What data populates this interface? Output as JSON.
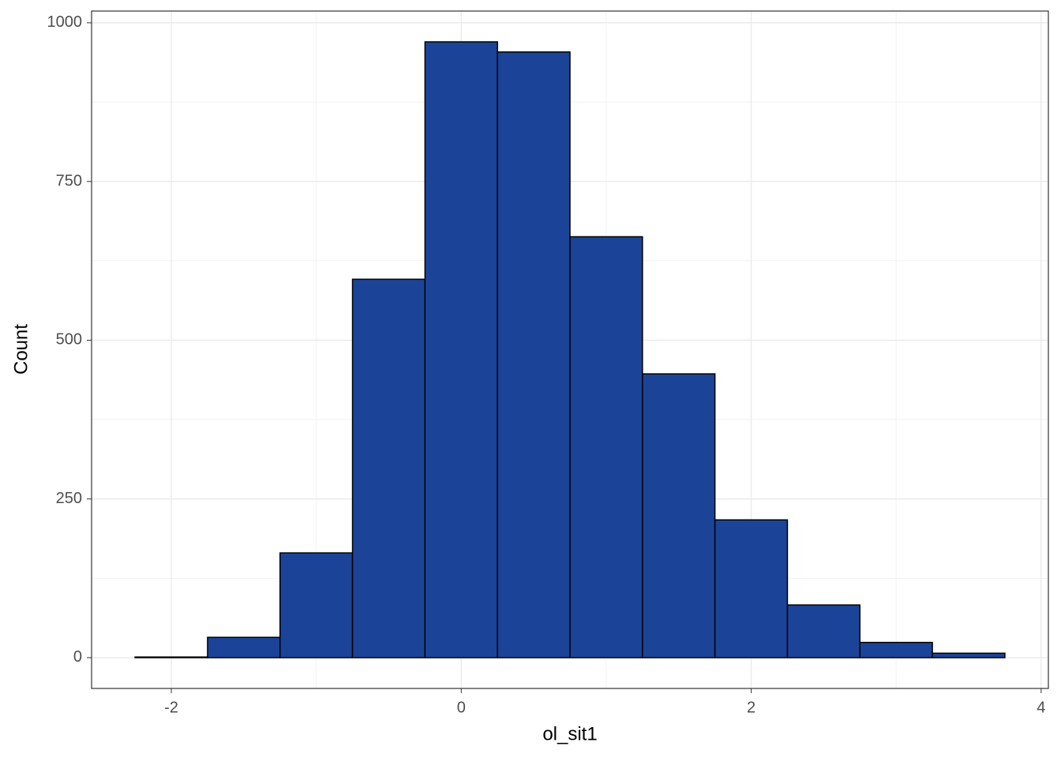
{
  "chart_data": {
    "type": "histogram",
    "x_label": "ol_sit1",
    "y_label": "Count",
    "bins": [
      -2.25,
      -1.75,
      -1.25,
      -0.75,
      -0.25,
      0.25,
      0.75,
      1.25,
      1.75,
      2.25,
      2.75,
      3.25,
      3.75
    ],
    "counts": [
      1,
      32,
      165,
      596,
      970,
      954,
      663,
      447,
      217,
      83,
      24,
      7
    ],
    "color": "#1b4499",
    "xlim": [
      -2.55,
      4.05
    ],
    "ylim": [
      -48.5,
      1018.5
    ],
    "xticks": [
      -2,
      0,
      2,
      4
    ],
    "yticks": [
      0,
      250,
      500,
      750,
      1000
    ],
    "xminor": [
      -1,
      1,
      3
    ],
    "yminor": [
      125,
      375,
      625,
      875
    ],
    "grid": true
  }
}
